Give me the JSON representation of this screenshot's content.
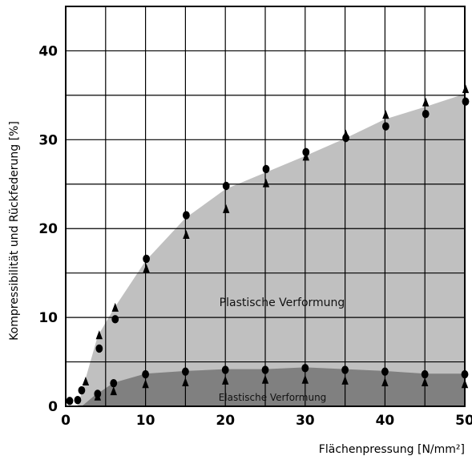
{
  "chart_data": {
    "type": "scatter",
    "title": "",
    "xlabel": "Flächenpressung [N/mm²]",
    "ylabel": "Kompressibilität und Rückfederung [%]",
    "xlim": [
      0,
      50
    ],
    "ylim": [
      0,
      45
    ],
    "x_ticks": [
      "0",
      "10",
      "20",
      "30",
      "40",
      "50"
    ],
    "y_ticks": [
      "0",
      "10",
      "20",
      "30",
      "40"
    ],
    "grid": true,
    "regions": [
      {
        "label": "Plastische Verformung",
        "color": "#c0c0c0"
      },
      {
        "label": "Elastische Verformung",
        "color": "#808080"
      }
    ],
    "series": [
      {
        "marker": "circle",
        "x": [
          0.5,
          1.5,
          2,
          4,
          4.2,
          6,
          6.2,
          10,
          10.1,
          15,
          15.1,
          20,
          20.1,
          25,
          25.1,
          30,
          30.1,
          35,
          35.1,
          40,
          40.1,
          45,
          45.1,
          50,
          50.1
        ],
        "y": [
          0.6,
          0.7,
          1.8,
          1.4,
          6.5,
          2.6,
          9.8,
          3.6,
          16.6,
          3.9,
          21.5,
          4.1,
          24.8,
          4.1,
          26.7,
          4.3,
          28.6,
          4.1,
          30.2,
          3.9,
          31.5,
          3.6,
          32.9,
          3.6,
          34.3
        ]
      },
      {
        "marker": "triangle",
        "x": [
          2.5,
          4,
          4.2,
          6,
          6.2,
          10,
          10.1,
          15,
          15.1,
          20,
          20.1,
          25,
          25.1,
          30,
          30.1,
          35,
          35.1,
          40,
          40.1,
          45,
          45.1,
          50,
          50.1
        ],
        "y": [
          2.8,
          1.1,
          8.0,
          1.7,
          11.1,
          2.5,
          15.5,
          2.7,
          19.3,
          2.9,
          22.2,
          3.0,
          25.1,
          3.0,
          28.1,
          2.9,
          30.6,
          2.7,
          32.8,
          2.7,
          34.2,
          2.5,
          35.7
        ]
      }
    ]
  }
}
